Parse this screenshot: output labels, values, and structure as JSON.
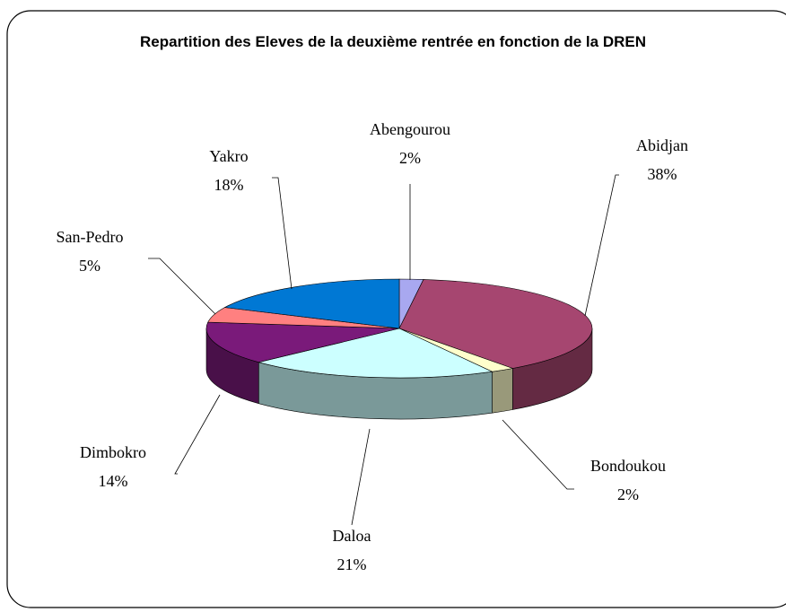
{
  "chart_data": {
    "type": "pie3d",
    "title": "Repartition des Eleves de la deuxième rentrée en fonction de la DREN",
    "categories": [
      "Abengourou",
      "Abidjan",
      "Bondoukou",
      "Daloa",
      "Dimbokro",
      "San-Pedro",
      "Yakro"
    ],
    "values": [
      2,
      38,
      2,
      21,
      14,
      5,
      18
    ],
    "value_labels": [
      "2%",
      "38%",
      "2%",
      "21%",
      "14%",
      "5%",
      "18%"
    ],
    "colors": [
      "#a8a8f0",
      "#a64670",
      "#ffffcc",
      "#ccffff",
      "#7a1a7a",
      "#ff8080",
      "#0078d4"
    ]
  }
}
